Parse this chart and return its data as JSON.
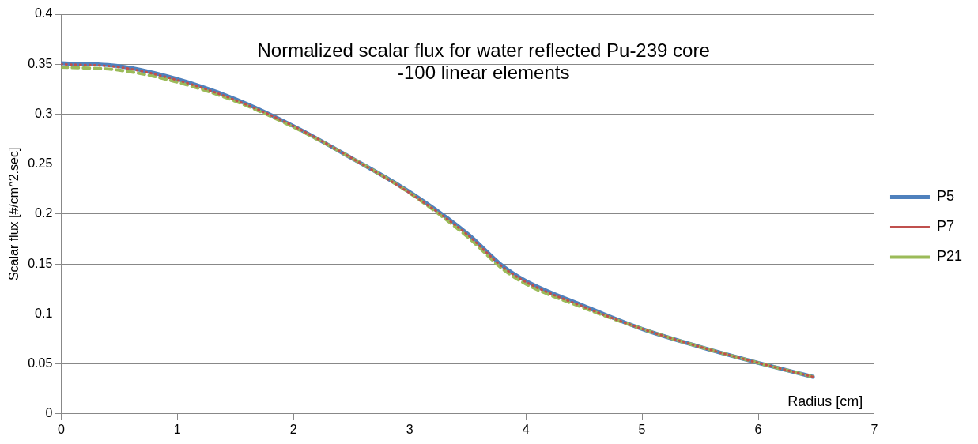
{
  "chart_data": {
    "type": "line",
    "title": "Normalized scalar flux for water reflected Pu-239 core -100 linear elements",
    "xlabel": "Radius [cm]",
    "ylabel": "Scalar flux [#/cm^2.sec]",
    "xlim": [
      0,
      7
    ],
    "xticks": [
      0,
      1,
      2,
      3,
      4,
      5,
      6,
      7
    ],
    "ylim": [
      0,
      0.4
    ],
    "yticks": [
      0,
      0.05,
      0.1,
      0.15,
      0.2,
      0.25,
      0.3,
      0.35,
      0.4
    ],
    "grid": "y",
    "legend": "right",
    "marker": "none",
    "x": [
      0,
      0.5,
      1,
      1.5,
      2,
      2.5,
      3,
      3.5,
      3.8,
      4,
      4.5,
      5,
      5.5,
      6,
      6.47
    ],
    "series": [
      {
        "name": "P5",
        "color": "#4f81bd",
        "line_style": "solid",
        "values": [
          0.351,
          0.348,
          0.335,
          0.315,
          0.288,
          0.256,
          0.222,
          0.18,
          0.148,
          0.133,
          0.108,
          0.085,
          0.067,
          0.051,
          0.037
        ]
      },
      {
        "name": "P7",
        "color": "#c0504d",
        "line_style": "dotted",
        "values": [
          0.35,
          0.347,
          0.334,
          0.314,
          0.288,
          0.256,
          0.221,
          0.179,
          0.147,
          0.132,
          0.107,
          0.085,
          0.067,
          0.051,
          0.037
        ]
      },
      {
        "name": "P21",
        "color": "#9bbb59",
        "line_style": "dashed",
        "values": [
          0.347,
          0.344,
          0.332,
          0.313,
          0.287,
          0.256,
          0.221,
          0.177,
          0.145,
          0.13,
          0.106,
          0.085,
          0.067,
          0.051,
          0.037
        ]
      }
    ]
  }
}
